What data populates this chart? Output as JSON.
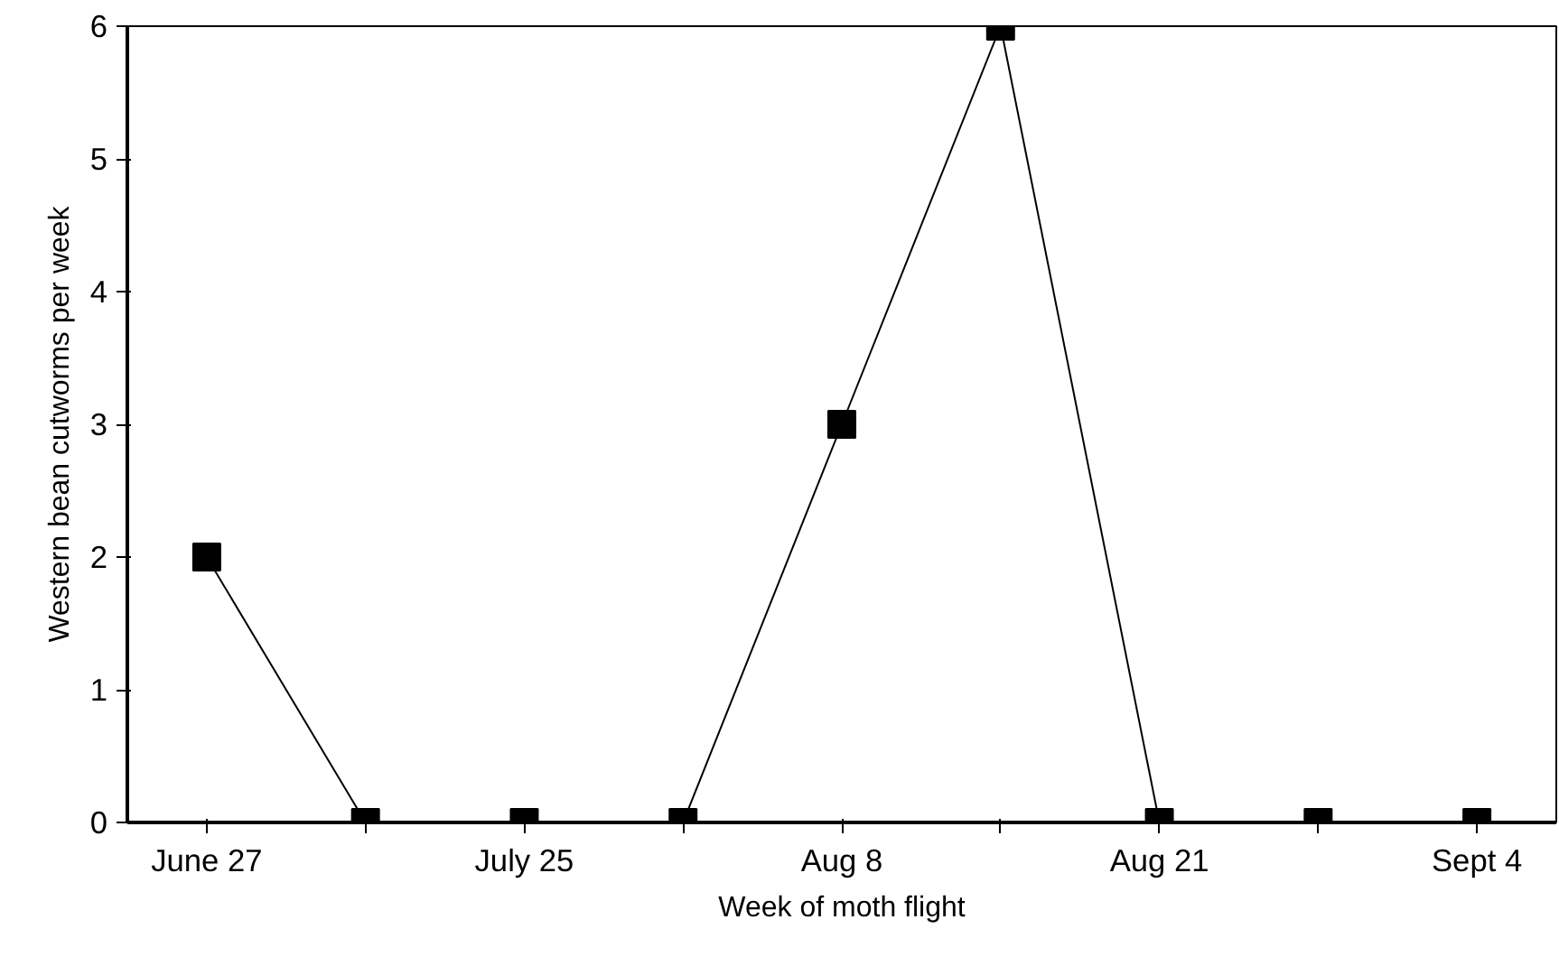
{
  "chart_data": {
    "type": "line",
    "xlabel": "Week of moth flight",
    "ylabel": "Western bean cutworms per week",
    "categories": [
      "June 27",
      null,
      "July 25",
      null,
      "Aug 8",
      null,
      "Aug 21",
      null,
      "Sept 4"
    ],
    "series": [
      {
        "color": "#000000",
        "values": [
          2,
          0,
          0,
          0,
          3,
          6,
          0,
          0,
          0
        ]
      }
    ],
    "ylim": [
      0,
      6
    ],
    "yticks": [
      0,
      1,
      2,
      3,
      4,
      5,
      6
    ],
    "grid": false,
    "marker": "square",
    "line_style": "solid"
  }
}
